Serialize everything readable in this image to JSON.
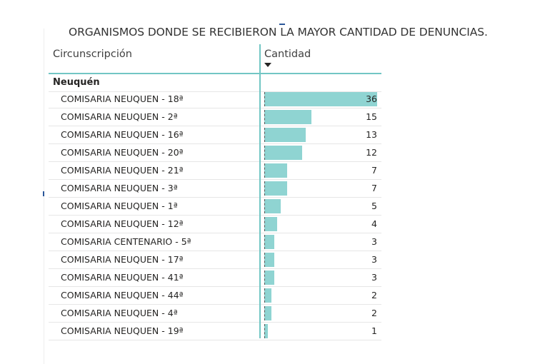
{
  "chart_data": {
    "type": "table",
    "title": "ORGANISMOS DONDE SE RECIBIERON LA MAYOR CANTIDAD DE DENUNCIAS.",
    "columns": [
      "Circunscripción",
      "Cantidad"
    ],
    "sort": "Cantidad descending",
    "group": "Neuquén",
    "max_value": 36,
    "rows": [
      {
        "name": "COMISARIA NEUQUEN - 18ª",
        "value": 36
      },
      {
        "name": "COMISARIA NEUQUEN - 2ª",
        "value": 15
      },
      {
        "name": "COMISARIA NEUQUEN - 16ª",
        "value": 13
      },
      {
        "name": "COMISARIA NEUQUEN - 20ª",
        "value": 12
      },
      {
        "name": "COMISARIA NEUQUEN - 21ª",
        "value": 7
      },
      {
        "name": "COMISARIA NEUQUEN - 3ª",
        "value": 7
      },
      {
        "name": "COMISARIA NEUQUEN - 1ª",
        "value": 5
      },
      {
        "name": "COMISARIA NEUQUEN - 12ª",
        "value": 4
      },
      {
        "name": "COMISARIA CENTENARIO - 5ª",
        "value": 3
      },
      {
        "name": "COMISARIA NEUQUEN - 17ª",
        "value": 3
      },
      {
        "name": "COMISARIA NEUQUEN - 41ª",
        "value": 3
      },
      {
        "name": "COMISARIA NEUQUEN - 44ª",
        "value": 2
      },
      {
        "name": "COMISARIA NEUQUEN - 4ª",
        "value": 2
      },
      {
        "name": "COMISARIA NEUQUEN - 19ª",
        "value": 1
      }
    ],
    "bar_color": "#8fd4d2",
    "accent_color": "#72c6c4"
  },
  "icons": {
    "sort": "sort-descending-icon"
  }
}
